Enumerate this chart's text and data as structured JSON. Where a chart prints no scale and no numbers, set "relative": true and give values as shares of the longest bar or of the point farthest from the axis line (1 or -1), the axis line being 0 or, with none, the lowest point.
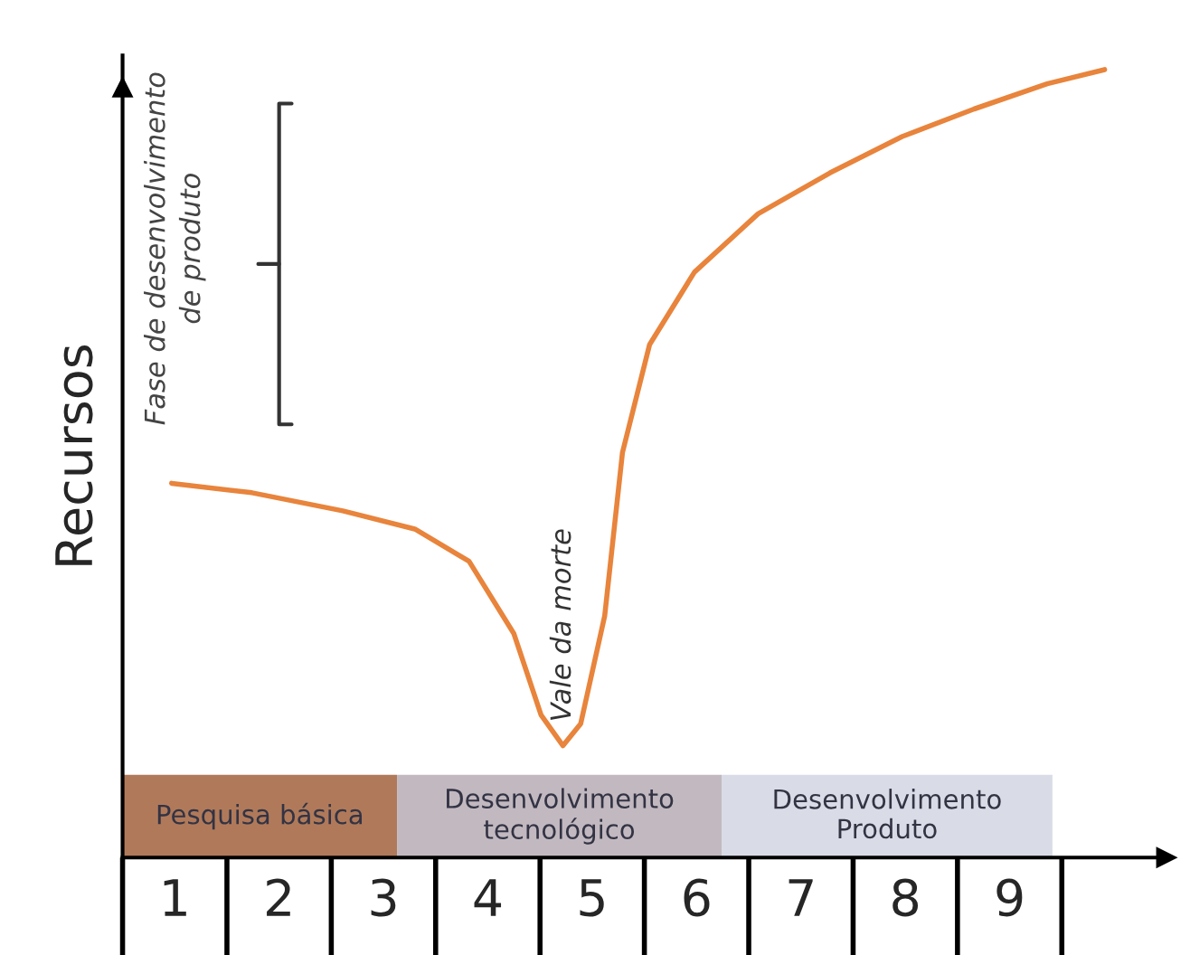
{
  "chart_data": {
    "type": "line",
    "relative": true,
    "ylabel": "Recursos",
    "xlim": [
      0.5,
      10.5
    ],
    "xticks": [
      1,
      2,
      3,
      4,
      5,
      6,
      7,
      8,
      9
    ],
    "series": [
      {
        "color": "#e8843c",
        "x": [
          0.97,
          1.74,
          2.61,
          3.3,
          3.82,
          4.25,
          4.51,
          4.72,
          4.89,
          5.12,
          5.29,
          5.55,
          5.98,
          6.59,
          7.28,
          7.97,
          8.66,
          9.36,
          9.91
        ],
        "values": [
          0.475,
          0.463,
          0.44,
          0.417,
          0.376,
          0.284,
          0.181,
          0.142,
          0.17,
          0.307,
          0.514,
          0.651,
          0.743,
          0.817,
          0.869,
          0.915,
          0.95,
          0.982,
          1.0
        ]
      }
    ],
    "bands": [
      {
        "axis": "x",
        "from": 0.5,
        "to": 3.13,
        "label": "Pesquisa básica",
        "color": "#b07a5a"
      },
      {
        "axis": "x",
        "from": 3.13,
        "to": 6.24,
        "label": "Desenvolvimento\ntecnológico",
        "color": "#c2b9c0"
      },
      {
        "axis": "x",
        "from": 6.24,
        "to": 9.41,
        "label": "Desenvolvimento\nProduto",
        "color": "#d9dce6"
      }
    ],
    "annotations": [
      {
        "text": "Vale da morte",
        "x": 4.72,
        "y": 0.142
      },
      "Fase de desenvolvimento\nde produto"
    ],
    "grid": false,
    "legend": false,
    "marker": "none",
    "line_style": "solid"
  }
}
